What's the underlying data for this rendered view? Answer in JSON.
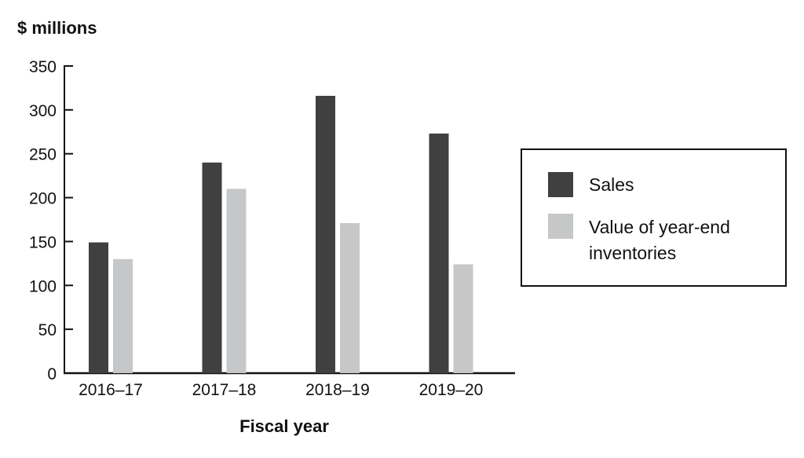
{
  "chart_data": {
    "type": "bar",
    "ylabel": "$ millions",
    "xlabel": "Fiscal year",
    "categories": [
      "2016–17",
      "2017–18",
      "2018–19",
      "2019–20"
    ],
    "series": [
      {
        "name": "Sales",
        "values": [
          149,
          240,
          316,
          273
        ],
        "color": "#404040"
      },
      {
        "name": "Value of year-end inventories",
        "name_lines": [
          "Value of year-end",
          "inventories"
        ],
        "values": [
          130,
          210,
          171,
          124
        ],
        "color": "#c6c7c9"
      }
    ],
    "ylim": [
      0,
      350
    ],
    "yticks": [
      0,
      50,
      100,
      150,
      200,
      250,
      300,
      350
    ],
    "grid": false,
    "legend": "right"
  }
}
